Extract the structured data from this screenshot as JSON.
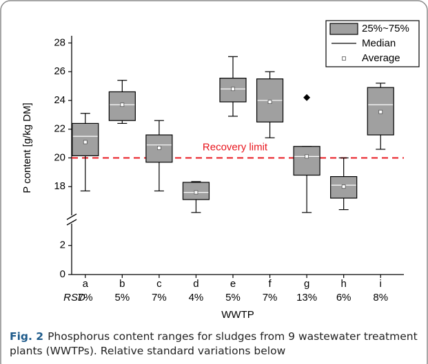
{
  "chart_data": {
    "type": "box",
    "y_label": "P content [g/kg DM]",
    "x_label": "WWTP",
    "categories": [
      "a",
      "b",
      "c",
      "d",
      "e",
      "f",
      "g",
      "h",
      "i"
    ],
    "rsd_label": "RSD",
    "rsd": [
      "7%",
      "5%",
      "7%",
      "4%",
      "5%",
      "7%",
      "13%",
      "6%",
      "8%"
    ],
    "boxes": [
      {
        "low": 17.7,
        "q1": 20.15,
        "median": 21.5,
        "q3": 22.4,
        "high": 23.1,
        "mean": 21.1,
        "outliers": []
      },
      {
        "low": 22.4,
        "q1": 22.6,
        "median": 23.7,
        "q3": 24.6,
        "high": 25.4,
        "mean": 23.7,
        "outliers": []
      },
      {
        "low": 17.7,
        "q1": 19.7,
        "median": 20.9,
        "q3": 21.6,
        "high": 22.6,
        "mean": 20.7,
        "outliers": []
      },
      {
        "low": 16.2,
        "q1": 17.1,
        "median": 17.6,
        "q3": 18.3,
        "high": 18.35,
        "mean": 17.6,
        "outliers": []
      },
      {
        "low": 22.9,
        "q1": 23.9,
        "median": 24.8,
        "q3": 25.55,
        "high": 27.05,
        "mean": 24.8,
        "outliers": []
      },
      {
        "low": 21.4,
        "q1": 22.5,
        "median": 24.0,
        "q3": 25.5,
        "high": 26.0,
        "mean": 23.9,
        "outliers": []
      },
      {
        "low": 16.2,
        "q1": 18.8,
        "median": 20.1,
        "q3": 20.8,
        "high": 20.8,
        "mean": 20.1,
        "outliers": [
          24.2
        ]
      },
      {
        "low": 16.4,
        "q1": 17.2,
        "median": 18.1,
        "q3": 18.7,
        "high": 20.0,
        "mean": 18.0,
        "outliers": []
      },
      {
        "low": 20.6,
        "q1": 21.6,
        "median": 23.7,
        "q3": 24.9,
        "high": 25.2,
        "mean": 23.2,
        "outliers": []
      }
    ],
    "box_color": "#a0a0a0",
    "ylim": [
      16,
      28.5
    ],
    "yticks": [
      18,
      20,
      22,
      24,
      26,
      28
    ],
    "ylim_lower": [
      0,
      3.5
    ],
    "yticks_lower": [
      0,
      2
    ],
    "reference_line": {
      "value": 20,
      "label": "Recovery limit",
      "color": "#e8141c"
    },
    "legend": [
      "25%~75%",
      "Median",
      "Average"
    ],
    "legend_position": "upper right"
  },
  "caption": {
    "label": "Fig. 2",
    "text": "Phosphorus content ranges for sludges from 9 wastewater treatment plants (WWTPs). Relative standard variations below"
  }
}
